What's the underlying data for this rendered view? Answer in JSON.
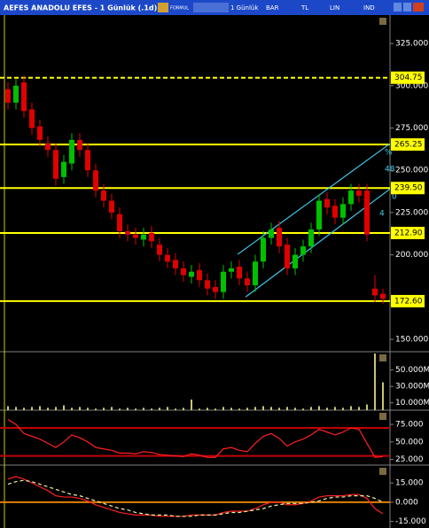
{
  "window": {
    "title": "AEFES ANADOLU EFES - 1 Günlük (.1d)",
    "toolbar": [
      "FORMUL",
      "1 Günlük",
      "BAR",
      "TL",
      "LIN",
      "IND"
    ]
  },
  "chart_data": [
    {
      "type": "candlestick",
      "open": [
        298,
        290,
        302,
        286,
        276,
        266,
        262,
        246,
        254,
        268,
        262,
        250,
        238,
        232,
        224,
        214,
        212,
        209,
        213,
        206,
        200,
        197,
        192,
        187,
        191,
        185,
        181,
        178,
        190,
        193,
        186,
        182,
        196,
        210,
        216,
        206,
        192,
        200,
        205,
        215,
        233,
        229,
        222,
        230,
        238,
        238,
        180,
        177
      ],
      "high": [
        302,
        304,
        306,
        290,
        280,
        270,
        266,
        259,
        272,
        272,
        266,
        254,
        242,
        236,
        228,
        218,
        216,
        216,
        217,
        210,
        204,
        201,
        196,
        194,
        195,
        189,
        185,
        194,
        196,
        197,
        190,
        200,
        214,
        219,
        220,
        210,
        204,
        209,
        219,
        236,
        237,
        233,
        234,
        242,
        242,
        242,
        188,
        180
      ],
      "low": [
        286,
        286,
        281,
        271,
        264,
        258,
        241,
        242,
        250,
        258,
        246,
        234,
        228,
        221,
        210,
        208,
        206,
        205,
        204,
        196,
        192,
        188,
        184,
        183,
        181,
        176,
        174,
        174,
        186,
        182,
        178,
        178,
        192,
        206,
        201,
        188,
        188,
        196,
        201,
        211,
        224,
        218,
        218,
        226,
        231,
        208,
        172,
        171
      ],
      "close": [
        290,
        300,
        285,
        275,
        268,
        262,
        245,
        255,
        268,
        262,
        250,
        238,
        232,
        225,
        214,
        212,
        210,
        212,
        208,
        200,
        196,
        192,
        188,
        190,
        185,
        180,
        178,
        190,
        192,
        186,
        182,
        196,
        210,
        215,
        205,
        192,
        200,
        205,
        215,
        232,
        228,
        222,
        230,
        238,
        235,
        212,
        176,
        174
      ],
      "up_color": "#00c000",
      "down_color": "#e00000",
      "ylim": [
        142.7,
        341.8
      ],
      "yticks": [
        {
          "value": 325,
          "label": "325.000"
        },
        {
          "value": 300,
          "label": "300.000"
        },
        {
          "value": 275,
          "label": "275.000"
        },
        {
          "value": 250,
          "label": "250.000"
        },
        {
          "value": 225,
          "label": "225.000"
        },
        {
          "value": 200,
          "label": "200.000"
        },
        {
          "value": 150,
          "label": "150.000"
        }
      ],
      "hlines": [
        {
          "value": 304.75,
          "label": "304.75",
          "color": "#ffff00",
          "style": "dashed"
        },
        {
          "value": 265.25,
          "label": "265.25",
          "color": "#ffff00",
          "style": "solid"
        },
        {
          "value": 239.5,
          "label": "239.50",
          "color": "#ffff00",
          "style": "solid"
        },
        {
          "value": 212.9,
          "label": "212.90",
          "color": "#ffff00",
          "style": "solid"
        },
        {
          "value": 172.6,
          "label": "172.60",
          "color": "#ffff00",
          "style": "solid"
        }
      ],
      "trendlines": [
        {
          "x": [
            28.8,
            47.9
          ],
          "y": [
            200.3,
            265.8
          ],
          "color": "#40c8e8"
        },
        {
          "x": [
            29.8,
            47.9
          ],
          "y": [
            175.1,
            239.0
          ],
          "color": "#40c8e8"
        }
      ],
      "annotations": [
        "%",
        "48",
        "4",
        "0"
      ]
    },
    {
      "type": "bar",
      "color": "#c8c870",
      "values": [
        6,
        5,
        4,
        5,
        6,
        4,
        5,
        7,
        4,
        5,
        4,
        3,
        4,
        5,
        3,
        4,
        3,
        4,
        3,
        4,
        5,
        3,
        4,
        14,
        3,
        4,
        3,
        5,
        4,
        3,
        4,
        5,
        6,
        5,
        4,
        5,
        4,
        3,
        5,
        6,
        4,
        5,
        4,
        6,
        5,
        8,
        70,
        35
      ],
      "ylim": [
        1.1,
        72.2
      ],
      "yticks": [
        {
          "value": 50,
          "label": "50.000M"
        },
        {
          "value": 30,
          "label": "30.000M"
        },
        {
          "value": 10,
          "label": "10.000M"
        }
      ]
    },
    {
      "type": "line",
      "series": [
        {
          "color": "#ff2020",
          "style": "solid",
          "values": [
            82,
            75,
            62,
            58,
            54,
            48,
            42,
            50,
            60,
            56,
            50,
            42,
            40,
            38,
            34,
            34,
            33,
            36,
            35,
            32,
            31,
            30,
            29,
            33,
            31,
            28,
            28,
            40,
            42,
            38,
            36,
            48,
            58,
            62,
            55,
            44,
            50,
            54,
            60,
            68,
            64,
            60,
            64,
            70,
            68,
            48,
            28,
            29
          ]
        }
      ],
      "ylim": [
        16.9,
        95.3
      ],
      "yticks": [
        {
          "value": 75,
          "label": "75.000"
        },
        {
          "value": 50,
          "label": "50.000"
        },
        {
          "value": 25,
          "label": "25.000"
        }
      ],
      "hlines": [
        {
          "value": 70,
          "color": "#c00000",
          "style": "solid"
        },
        {
          "value": 30,
          "color": "#c00000",
          "style": "solid"
        }
      ]
    },
    {
      "type": "line",
      "series": [
        {
          "color": "#ff2020",
          "style": "solid",
          "values": [
            18,
            20,
            18,
            15,
            12,
            9,
            5,
            4,
            4,
            3,
            1,
            -2,
            -4,
            -6,
            -8,
            -9,
            -10,
            -10,
            -10,
            -11,
            -11,
            -11,
            -11,
            -10,
            -10,
            -10,
            -10,
            -8,
            -7,
            -7,
            -7,
            -5,
            -2,
            0,
            0,
            -2,
            -2,
            -1,
            1,
            4,
            5,
            5,
            5,
            6,
            6,
            3,
            -5,
            -9
          ]
        },
        {
          "color": "#f0f0a0",
          "style": "dashed",
          "values": [
            14,
            16,
            17,
            16,
            14,
            12,
            10,
            8,
            6,
            5,
            3,
            1,
            -1,
            -3,
            -5,
            -6,
            -8,
            -9,
            -10,
            -10,
            -10,
            -11,
            -11,
            -11,
            -10,
            -10,
            -10,
            -9,
            -8,
            -8,
            -7,
            -6,
            -5,
            -3,
            -2,
            -1,
            -1,
            -1,
            0,
            1,
            3,
            4,
            4,
            5,
            5,
            5,
            3,
            0
          ]
        }
      ],
      "ylim": [
        -20.1,
        28.9
      ],
      "yticks": [
        {
          "value": 15,
          "label": "15.000"
        },
        {
          "value": 0,
          "label": "0.000"
        },
        {
          "value": -15,
          "label": "-15.000"
        }
      ],
      "hlines": [
        {
          "value": 0,
          "color": "#e08000",
          "style": "solid"
        }
      ]
    }
  ]
}
